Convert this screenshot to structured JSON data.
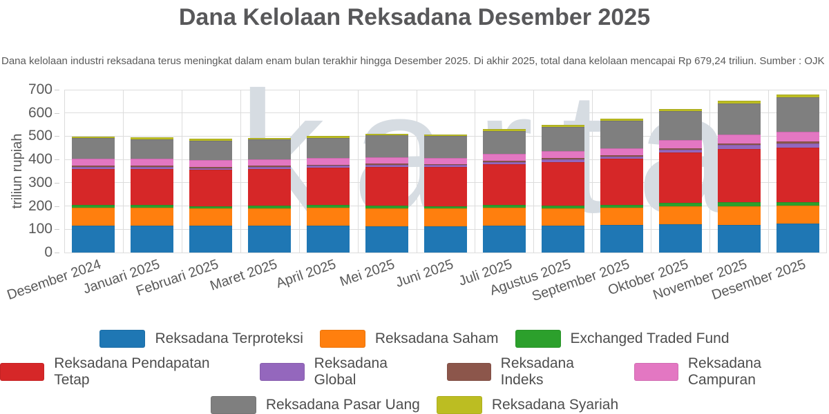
{
  "header": {
    "title": "Dana Kelolaan Reksadana Desember 2025",
    "subtitle": "Dana kelolaan industri reksadana terus meningkat dalam enam bulan terakhir hingga Desember 2025. Di akhir 2025, total dana kelolaan mencapai Rp 679,24 triliun. Sumber : OJK"
  },
  "watermark": {
    "text": "karta"
  },
  "chart_data": {
    "type": "bar",
    "stacked": true,
    "title": "Dana Kelolaan Reksadana Desember 2025",
    "xlabel": "",
    "ylabel": "triliun rupiah",
    "ylim": [
      0,
      700
    ],
    "y_ticks": [
      0,
      100,
      200,
      300,
      400,
      500,
      600,
      700
    ],
    "grid": true,
    "legend_position": "bottom",
    "unit": "triliun rupiah",
    "total_desember_2025": 679.24,
    "categories": [
      "Desember 2024",
      "Januari 2025",
      "Februari 2025",
      "Maret 2025",
      "April 2025",
      "Mei 2025",
      "Juni 2025",
      "Juli 2025",
      "Agustus 2025",
      "September 2025",
      "Oktober 2025",
      "November 2025",
      "Desember 2025"
    ],
    "series": [
      {
        "name": "Reksadana Terproteksi",
        "color": "#1f77b4",
        "values": [
          115,
          116,
          115,
          116,
          117,
          114,
          113,
          115,
          116,
          120,
          121,
          118,
          125
        ]
      },
      {
        "name": "Reksadana Saham",
        "color": "#ff7f0e",
        "values": [
          79,
          78,
          74,
          75,
          77,
          77,
          76,
          77,
          75,
          73,
          77,
          82,
          76
        ]
      },
      {
        "name": "Exchanged Traded Fund",
        "color": "#2ca02c",
        "values": [
          12,
          11,
          10,
          11,
          11,
          12,
          11,
          12,
          12,
          13,
          15,
          18,
          16
        ]
      },
      {
        "name": "Reksadana Pendapatan Tetap",
        "color": "#d62728",
        "values": [
          154,
          154,
          156,
          158,
          159,
          165,
          167,
          176,
          187,
          196,
          216,
          228,
          235.24
        ]
      },
      {
        "name": "Reksadana Global",
        "color": "#9467bd",
        "values": [
          9,
          9,
          8,
          8,
          9,
          9,
          9,
          10,
          10,
          11,
          13,
          16,
          17
        ]
      },
      {
        "name": "Reksadana Indeks",
        "color": "#8c564b",
        "values": [
          5,
          5,
          5,
          5,
          5,
          5,
          5,
          5,
          6,
          6,
          7,
          8,
          9
        ]
      },
      {
        "name": "Reksadana Campuran",
        "color": "#e377c2",
        "values": [
          31,
          30,
          29,
          29,
          30,
          27,
          27,
          28,
          29,
          30,
          34,
          36,
          42
        ]
      },
      {
        "name": "Reksadana Pasar Uang",
        "color": "#7f7f7f",
        "values": [
          88,
          85,
          85,
          84,
          85,
          94,
          92,
          99,
          105,
          118,
          124,
          134,
          146
        ]
      },
      {
        "name": "Reksadana Syariah",
        "color": "#bcbd22",
        "values": [
          7,
          7,
          7,
          7,
          8,
          8,
          8,
          9,
          9,
          10,
          11,
          12,
          13
        ]
      }
    ]
  },
  "legend": {
    "rows": [
      [
        0,
        1,
        2
      ],
      [
        3,
        4,
        5,
        6
      ],
      [
        7,
        8
      ]
    ]
  },
  "colors": {
    "background": "#ffffff",
    "title_text": "#58585a",
    "subtitle_text": "#595959",
    "axis_text": "#595959",
    "gridline": "#dcdcdc",
    "watermark": "#d6dce2"
  }
}
